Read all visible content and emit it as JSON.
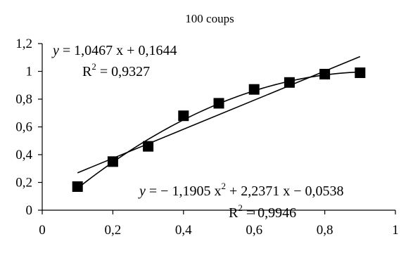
{
  "chart_data": {
    "type": "scatter",
    "title": "100 coups",
    "xlabel": "",
    "ylabel": "",
    "xlim": [
      0,
      1
    ],
    "ylim": [
      0,
      1.2
    ],
    "x_ticks": [
      "0",
      "0,2",
      "0,4",
      "0,6",
      "0,8",
      "1"
    ],
    "y_ticks": [
      "0",
      "0,2",
      "0,4",
      "0,6",
      "0,8",
      "1",
      "1,2"
    ],
    "grid": false,
    "legend": "none",
    "series": [
      {
        "marker": "square",
        "color": "#000000",
        "x": [
          0.1,
          0.2,
          0.3,
          0.4,
          0.5,
          0.6,
          0.7,
          0.8,
          0.9
        ],
        "y": [
          0.17,
          0.35,
          0.46,
          0.68,
          0.77,
          0.87,
          0.92,
          0.98,
          0.99
        ]
      }
    ],
    "trendlines": [
      {
        "kind": "linear",
        "coefficients": [
          1.0467,
          0.1644
        ],
        "x_range": [
          0.1,
          0.9
        ],
        "equation": {
          "y": "y",
          "rhs": " = 1,0467 x + 0,1644"
        },
        "r2": {
          "base": "R",
          "exp": "2",
          "value": " = 0,9327"
        }
      },
      {
        "kind": "polynomial",
        "coefficients": [
          -1.1905,
          2.2371,
          -0.0538
        ],
        "x_range": [
          0.1,
          0.9
        ],
        "equation": {
          "y": "y",
          "rhs_a": " = − 1,1905 x",
          "exp": "2",
          "rhs_b": " + 2,2371 x − 0,0538"
        },
        "r2": {
          "base": "R",
          "exp": "2",
          "value": " = 0,9946"
        }
      }
    ]
  }
}
